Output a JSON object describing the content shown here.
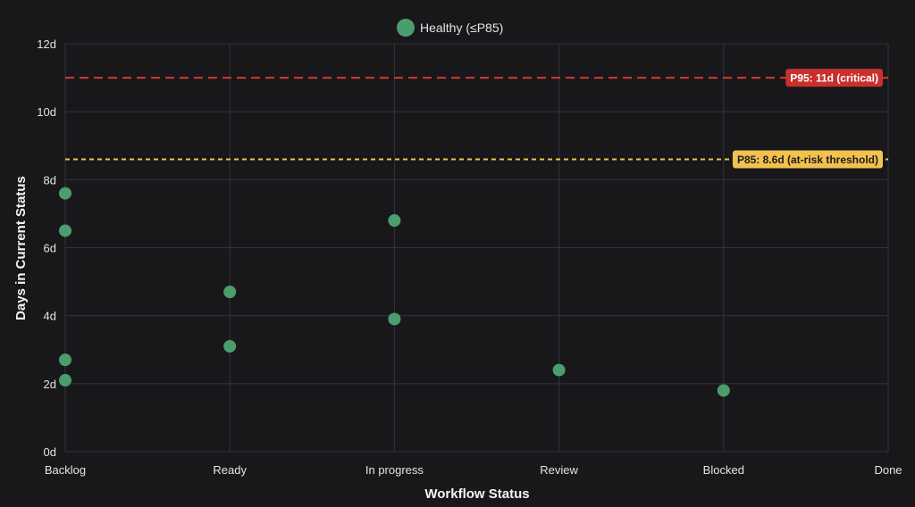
{
  "chart_data": {
    "type": "scatter",
    "xlabel": "Workflow Status",
    "ylabel": "Days in Current Status",
    "categories": [
      "Backlog",
      "Ready",
      "In progress",
      "Review",
      "Blocked",
      "Done"
    ],
    "ylim": [
      0,
      12
    ],
    "yticks": [
      0,
      2,
      4,
      6,
      8,
      10,
      12
    ],
    "ytick_suffix": "d",
    "grid": true,
    "legend_position": "top-center",
    "series": [
      {
        "name": "Healthy (≤P85)",
        "color": "#4a9e6e",
        "points": [
          {
            "x": "Backlog",
            "y": 7.6
          },
          {
            "x": "Backlog",
            "y": 6.5
          },
          {
            "x": "Backlog",
            "y": 2.7
          },
          {
            "x": "Backlog",
            "y": 2.1
          },
          {
            "x": "Ready",
            "y": 4.7
          },
          {
            "x": "Ready",
            "y": 3.1
          },
          {
            "x": "In progress",
            "y": 6.8
          },
          {
            "x": "In progress",
            "y": 3.9
          },
          {
            "x": "Review",
            "y": 2.4
          },
          {
            "x": "Blocked",
            "y": 1.8
          }
        ]
      }
    ],
    "reference_lines": [
      {
        "value": 11,
        "label": "P95: 11d (critical)",
        "color": "#d9372e",
        "label_bg": "#c9302c",
        "label_color": "#ffffff",
        "style": "dashed"
      },
      {
        "value": 8.6,
        "label": "P85: 8.6d (at-risk threshold)",
        "color": "#f0c24b",
        "label_bg": "#f2c14e",
        "label_color": "#1c1c1c",
        "style": "dotted"
      }
    ]
  },
  "colors": {
    "background": "#18181b",
    "grid": "#34343a",
    "axis_text": "#e4e4e7"
  }
}
